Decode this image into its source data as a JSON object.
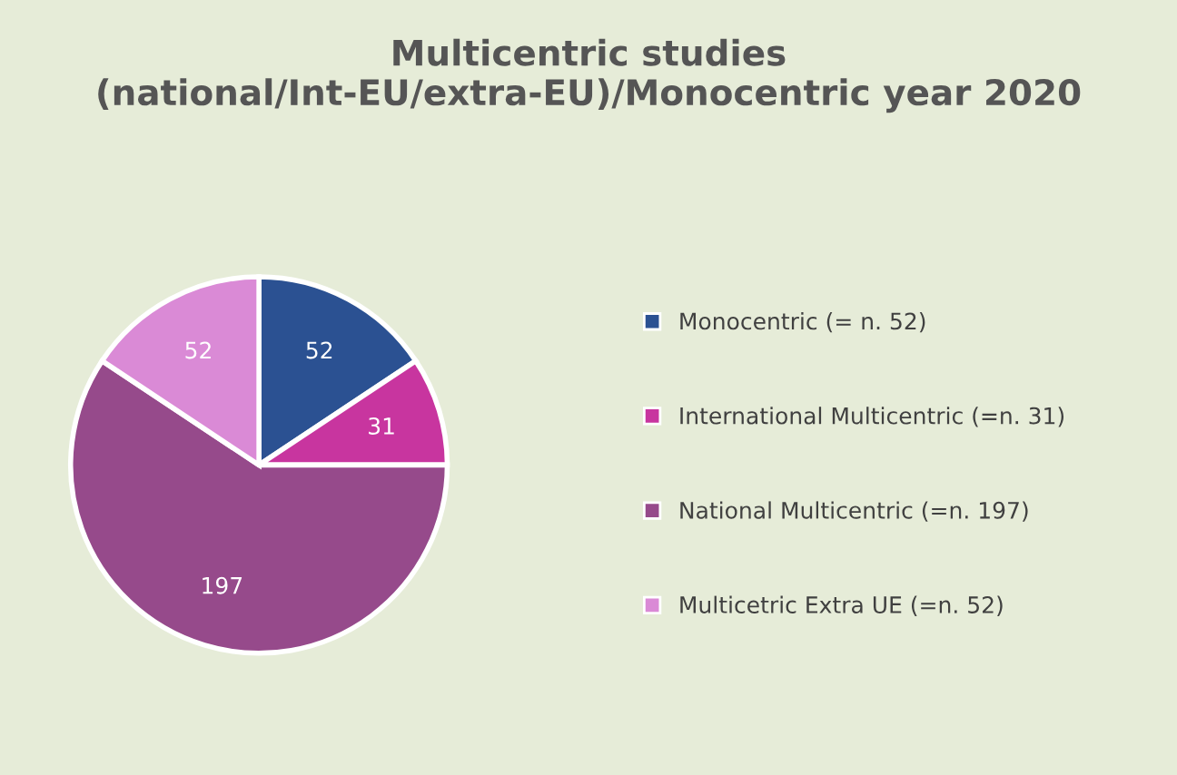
{
  "chart_data": {
    "type": "pie",
    "title": "Multicentric studies (national/Int-EU/extra-EU)/Monocentric year 2020",
    "categories": [
      "Monocentric (= n. 52)",
      "International Multicentric (=n. 31)",
      "National Multicentric (=n. 197)",
      "Multicetric Extra UE (=n. 52)"
    ],
    "values": [
      52,
      31,
      197,
      52
    ],
    "colors": [
      "#2b5192",
      "#c8359f",
      "#964a8b",
      "#da8ad6"
    ],
    "data_labels": true,
    "legend": "right"
  }
}
